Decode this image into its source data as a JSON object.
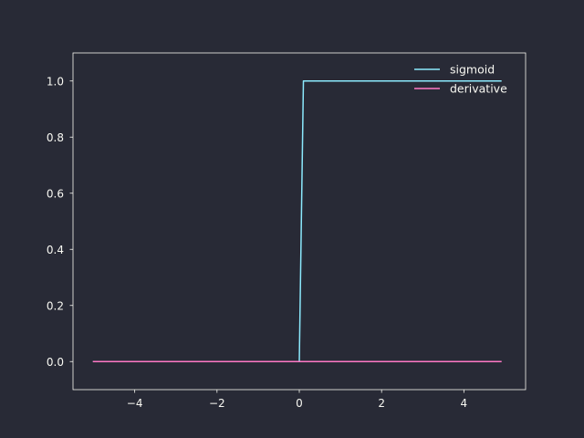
{
  "colors": {
    "background": "#282a36",
    "axes": "#f8f8f2",
    "sigmoid": "#8be9fd",
    "derivative": "#ff79c6"
  },
  "chart_data": {
    "type": "line",
    "title": "",
    "xlabel": "",
    "ylabel": "",
    "xlim": [
      -5.5,
      5.5
    ],
    "ylim": [
      -0.1,
      1.1
    ],
    "grid": false,
    "legend_position": "top-right",
    "x_ticks": [
      -4,
      -2,
      0,
      2,
      4
    ],
    "x_tick_labels": [
      "−4",
      "−2",
      "0",
      "2",
      "4"
    ],
    "y_ticks": [
      0.0,
      0.2,
      0.4,
      0.6,
      0.8,
      1.0
    ],
    "y_tick_labels": [
      "0.0",
      "0.2",
      "0.4",
      "0.6",
      "0.8",
      "1.0"
    ],
    "series": [
      {
        "name": "sigmoid",
        "color": "#8be9fd",
        "x": [
          -5.0,
          -0.1,
          0.0,
          0.1,
          4.9
        ],
        "y": [
          0.0,
          0.0,
          0.0,
          1.0,
          1.0
        ]
      },
      {
        "name": "derivative",
        "color": "#ff79c6",
        "x": [
          -5.0,
          4.9
        ],
        "y": [
          0.0,
          0.0
        ]
      }
    ]
  }
}
